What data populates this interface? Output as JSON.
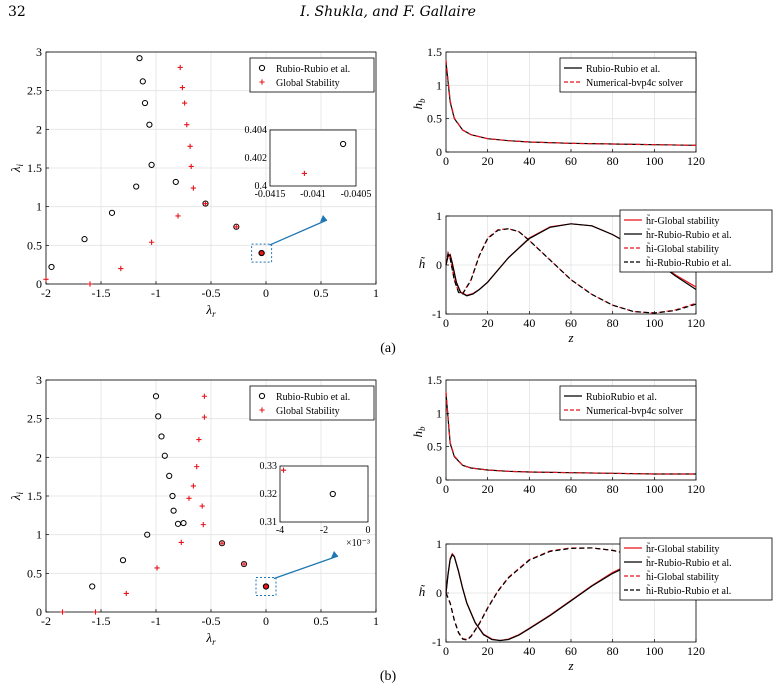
{
  "page": {
    "number": "32",
    "running_title": "I. Shukla, and F. Gallaire"
  },
  "panels": [
    {
      "caption": "(a)",
      "spectrum": {
        "xlabel": "λ",
        "xlabel_sub": "r",
        "ylabel": "λ",
        "ylabel_sub": "i",
        "xticks": [
          "-2",
          "-1.5",
          "-1",
          "-0.5",
          "0",
          "0.5",
          "1"
        ],
        "yticks": [
          "0",
          "0.5",
          "1",
          "1.5",
          "2",
          "2.5",
          "3"
        ],
        "legend": [
          "Rubio-Rubio et al.",
          "Global Stability"
        ],
        "inset_xticks": [
          "-0.0415",
          "-0.041",
          "-0.0405"
        ],
        "inset_yticks": [
          "0.4",
          "0.402",
          "0.404"
        ],
        "inset_xexp": ""
      },
      "base": {
        "ylabel": "h",
        "ylabel_sub": "b",
        "xticks": [
          "0",
          "20",
          "40",
          "60",
          "80",
          "100",
          "120"
        ],
        "yticks": [
          "0",
          "0.5",
          "1",
          "1.5"
        ],
        "legend": [
          "Rubio-Rubio et al.",
          "Numerical-bvp4c solver"
        ]
      },
      "pert": {
        "ylabel": "h̃",
        "xlabel": "z",
        "xticks": [
          "0",
          "20",
          "40",
          "60",
          "80",
          "100",
          "120"
        ],
        "yticks": [
          "-1",
          "0",
          "1"
        ],
        "legend": [
          "h̃r-Global stability",
          "h̃r-Rubio-Rubio et al.",
          "h̃i-Global stability",
          "h̃i-Rubio-Rubio et al."
        ]
      }
    },
    {
      "caption": "(b)",
      "spectrum": {
        "xlabel": "λ",
        "xlabel_sub": "r",
        "ylabel": "λ",
        "ylabel_sub": "i",
        "xticks": [
          "-2",
          "-1.5",
          "-1",
          "-0.5",
          "0",
          "0.5",
          "1"
        ],
        "yticks": [
          "0",
          "0.5",
          "1",
          "1.5",
          "2",
          "2.5",
          "3"
        ],
        "legend": [
          "Rubio-Rubio et al.",
          "Global Stability"
        ],
        "inset_xticks": [
          "-4",
          "-2",
          "0"
        ],
        "inset_yticks": [
          "0.31",
          "0.32",
          "0.33"
        ],
        "inset_xexp": "×10⁻³"
      },
      "base": {
        "ylabel": "h",
        "ylabel_sub": "b",
        "xticks": [
          "0",
          "20",
          "40",
          "60",
          "80",
          "100",
          "120"
        ],
        "yticks": [
          "0",
          "0.5",
          "1",
          "1.5"
        ],
        "legend": [
          "RubioRubio et al.",
          "Numerical-bvp4c solver"
        ]
      },
      "pert": {
        "ylabel": "h̃",
        "xlabel": "z",
        "xticks": [
          "0",
          "20",
          "40",
          "60",
          "80",
          "100",
          "120"
        ],
        "yticks": [
          "-1",
          "0",
          "1"
        ],
        "legend": [
          "h̃r-Global stability",
          "h̃r-Rubio-Rubio et al.",
          "h̃i-Global stability",
          "h̃i-Rubio-Rubio et al."
        ]
      }
    }
  ],
  "colors": {
    "rubio": "#000000",
    "global": "#e8141b",
    "arrow": "#1f77b4"
  },
  "chart_data": [
    {
      "panel": "a",
      "type": "scatter",
      "xlim": [
        -2,
        1
      ],
      "ylim": [
        0,
        3
      ],
      "series": [
        {
          "name": "Rubio-Rubio et al.",
          "marker": "circle",
          "x": [
            -1.95,
            -1.65,
            -1.4,
            -1.18,
            -1.15,
            -1.12,
            -1.1,
            -1.06,
            -1.04,
            -0.82,
            -0.55,
            -0.27,
            -0.04
          ],
          "y": [
            0.22,
            0.58,
            0.92,
            1.26,
            2.92,
            2.62,
            2.34,
            2.06,
            1.54,
            1.32,
            1.04,
            0.74,
            0.4
          ]
        },
        {
          "name": "Global Stability",
          "marker": "plus",
          "x": [
            -2.0,
            -1.6,
            -1.32,
            -1.04,
            -0.8,
            -0.66,
            -0.68,
            -0.69,
            -0.72,
            -0.74,
            -0.76,
            -0.78,
            -0.55,
            -0.27,
            -0.04
          ],
          "y": [
            0.06,
            0.0,
            0.2,
            0.54,
            0.88,
            1.24,
            1.52,
            1.78,
            2.06,
            2.34,
            2.54,
            2.8,
            1.04,
            0.74,
            0.4
          ]
        }
      ],
      "inset": {
        "xlim": [
          -0.0415,
          -0.0405
        ],
        "ylim": [
          0.4,
          0.404
        ],
        "points": [
          {
            "series": "Rubio-Rubio et al.",
            "x": -0.04065,
            "y": 0.403
          },
          {
            "series": "Global Stability",
            "x": -0.0411,
            "y": 0.4009
          }
        ]
      }
    },
    {
      "panel": "a",
      "type": "line",
      "xlim": [
        0,
        120
      ],
      "ylim": [
        0,
        1.5
      ],
      "ylabel": "h_b",
      "series": [
        {
          "name": "Rubio-Rubio et al.",
          "x": [
            0,
            2,
            4,
            8,
            12,
            20,
            30,
            40,
            60,
            80,
            100,
            120
          ],
          "y": [
            1.35,
            0.75,
            0.5,
            0.33,
            0.26,
            0.2,
            0.17,
            0.15,
            0.13,
            0.12,
            0.11,
            0.1
          ]
        },
        {
          "name": "Numerical-bvp4c solver",
          "x": [
            0,
            2,
            4,
            8,
            12,
            20,
            30,
            40,
            60,
            80,
            100,
            120
          ],
          "y": [
            1.38,
            0.77,
            0.51,
            0.33,
            0.26,
            0.2,
            0.17,
            0.15,
            0.13,
            0.12,
            0.11,
            0.1
          ]
        }
      ]
    },
    {
      "panel": "a",
      "type": "line",
      "xlim": [
        0,
        120
      ],
      "ylim": [
        -1,
        1
      ],
      "xlabel": "z",
      "series": [
        {
          "name": "h̃r-Global stability",
          "x": [
            0,
            1,
            2,
            3,
            5,
            7,
            10,
            13,
            16,
            20,
            25,
            30,
            40,
            50,
            60,
            70,
            80,
            90,
            100,
            110,
            120
          ],
          "y": [
            0,
            0.2,
            0.22,
            0.05,
            -0.35,
            -0.55,
            -0.62,
            -0.58,
            -0.5,
            -0.35,
            -0.1,
            0.15,
            0.55,
            0.78,
            0.84,
            0.8,
            0.62,
            0.38,
            0.1,
            -0.2,
            -0.45
          ]
        },
        {
          "name": "h̃r-Rubio-Rubio et al.",
          "x": [
            0,
            1,
            2,
            3,
            5,
            7,
            10,
            13,
            16,
            20,
            25,
            30,
            40,
            50,
            60,
            70,
            80,
            90,
            100,
            110,
            120
          ],
          "y": [
            0,
            0.18,
            0.2,
            0.03,
            -0.36,
            -0.56,
            -0.63,
            -0.59,
            -0.5,
            -0.35,
            -0.1,
            0.15,
            0.54,
            0.77,
            0.84,
            0.8,
            0.62,
            0.38,
            0.1,
            -0.22,
            -0.5
          ]
        },
        {
          "name": "h̃i-Global stability",
          "x": [
            0,
            1,
            2,
            4,
            6,
            8,
            12,
            16,
            20,
            25,
            30,
            35,
            40,
            50,
            60,
            70,
            80,
            90,
            100,
            110,
            120
          ],
          "y": [
            0,
            0.25,
            0.15,
            -0.3,
            -0.55,
            -0.58,
            -0.3,
            0.2,
            0.55,
            0.72,
            0.74,
            0.68,
            0.5,
            0.1,
            -0.3,
            -0.6,
            -0.82,
            -0.95,
            -0.98,
            -0.92,
            -0.78
          ]
        },
        {
          "name": "h̃i-Rubio-Rubio et al.",
          "x": [
            0,
            1,
            2,
            4,
            6,
            8,
            12,
            16,
            20,
            25,
            30,
            35,
            40,
            50,
            60,
            70,
            80,
            90,
            100,
            110,
            120
          ],
          "y": [
            0,
            0.23,
            0.13,
            -0.31,
            -0.56,
            -0.59,
            -0.31,
            0.19,
            0.54,
            0.71,
            0.74,
            0.68,
            0.5,
            0.1,
            -0.3,
            -0.6,
            -0.82,
            -0.95,
            -0.98,
            -0.93,
            -0.8
          ]
        }
      ]
    },
    {
      "panel": "b",
      "type": "scatter",
      "xlim": [
        -2,
        1
      ],
      "ylim": [
        0,
        3
      ],
      "series": [
        {
          "name": "Rubio-Rubio et al.",
          "marker": "circle",
          "x": [
            -1.58,
            -1.3,
            -1.08,
            -1.0,
            -0.98,
            -0.95,
            -0.92,
            -0.88,
            -0.85,
            -0.84,
            -0.8,
            -0.75,
            -0.4,
            -0.2,
            0.0
          ],
          "y": [
            0.33,
            0.67,
            1.0,
            2.79,
            2.53,
            2.27,
            2.02,
            1.76,
            1.5,
            1.31,
            1.14,
            1.15,
            0.89,
            0.62,
            0.33
          ]
        },
        {
          "name": "Global Stability",
          "marker": "plus",
          "x": [
            -1.85,
            -1.55,
            -1.27,
            -0.99,
            -0.77,
            -0.7,
            -0.66,
            -0.63,
            -0.61,
            -0.58,
            -0.57,
            -0.56,
            -0.56,
            -0.4,
            -0.2,
            0.0
          ],
          "y": [
            0.0,
            0.0,
            0.24,
            0.57,
            0.9,
            1.47,
            1.63,
            1.88,
            2.23,
            1.37,
            1.13,
            2.52,
            2.79,
            0.89,
            0.62,
            0.33
          ]
        }
      ],
      "inset": {
        "xlim": [
          -0.005,
          0
        ],
        "ylim": [
          0.31,
          0.33
        ],
        "points": [
          {
            "series": "Rubio-Rubio et al.",
            "x": -0.002,
            "y": 0.32
          },
          {
            "series": "Global Stability",
            "x": -0.0048,
            "y": 0.3285
          }
        ]
      }
    },
    {
      "panel": "b",
      "type": "line",
      "xlim": [
        0,
        120
      ],
      "ylim": [
        0,
        1.5
      ],
      "ylabel": "h_b",
      "series": [
        {
          "name": "RubioRubio et al.",
          "x": [
            0,
            2,
            4,
            8,
            12,
            20,
            30,
            40,
            60,
            80,
            100,
            120
          ],
          "y": [
            1.3,
            0.55,
            0.35,
            0.22,
            0.18,
            0.15,
            0.13,
            0.12,
            0.11,
            0.1,
            0.09,
            0.09
          ]
        },
        {
          "name": "Numerical-bvp4c solver",
          "x": [
            0,
            2,
            4,
            8,
            12,
            20,
            30,
            40,
            60,
            80,
            100,
            120
          ],
          "y": [
            1.32,
            0.56,
            0.36,
            0.22,
            0.18,
            0.15,
            0.13,
            0.12,
            0.11,
            0.1,
            0.09,
            0.09
          ]
        }
      ]
    },
    {
      "panel": "b",
      "type": "line",
      "xlim": [
        0,
        120
      ],
      "ylim": [
        -1,
        1
      ],
      "xlabel": "z",
      "series": [
        {
          "name": "h̃r-Global stability",
          "x": [
            0,
            1,
            2,
            3,
            4,
            6,
            8,
            10,
            14,
            18,
            22,
            26,
            30,
            35,
            40,
            50,
            60,
            70,
            80,
            90,
            100,
            110,
            120
          ],
          "y": [
            0,
            0.4,
            0.7,
            0.8,
            0.75,
            0.45,
            0.1,
            -0.2,
            -0.6,
            -0.84,
            -0.94,
            -0.97,
            -0.94,
            -0.85,
            -0.72,
            -0.45,
            -0.15,
            0.15,
            0.42,
            0.62,
            0.76,
            0.84,
            0.88
          ]
        },
        {
          "name": "h̃r-Rubio-Rubio et al.",
          "x": [
            0,
            1,
            2,
            3,
            4,
            6,
            8,
            10,
            14,
            18,
            22,
            26,
            30,
            35,
            40,
            50,
            60,
            70,
            80,
            90,
            100,
            110,
            120
          ],
          "y": [
            0,
            0.38,
            0.68,
            0.78,
            0.74,
            0.44,
            0.09,
            -0.21,
            -0.61,
            -0.85,
            -0.95,
            -0.97,
            -0.95,
            -0.86,
            -0.73,
            -0.46,
            -0.16,
            0.14,
            0.4,
            0.6,
            0.74,
            0.8,
            0.84
          ]
        },
        {
          "name": "h̃i-Global stability",
          "x": [
            0,
            2,
            4,
            6,
            8,
            10,
            12,
            16,
            20,
            25,
            30,
            40,
            50,
            60,
            70,
            80,
            90,
            100,
            110,
            120
          ],
          "y": [
            0,
            -0.2,
            -0.55,
            -0.8,
            -0.93,
            -0.95,
            -0.88,
            -0.62,
            -0.3,
            0.05,
            0.32,
            0.68,
            0.86,
            0.92,
            0.92,
            0.87,
            0.77,
            0.63,
            0.47,
            0.28
          ]
        },
        {
          "name": "h̃i-Rubio-Rubio et al.",
          "x": [
            0,
            2,
            4,
            6,
            8,
            10,
            12,
            16,
            20,
            25,
            30,
            40,
            50,
            60,
            70,
            80,
            90,
            100,
            110,
            120
          ],
          "y": [
            0,
            -0.21,
            -0.56,
            -0.81,
            -0.94,
            -0.96,
            -0.89,
            -0.63,
            -0.31,
            0.04,
            0.31,
            0.67,
            0.85,
            0.91,
            0.92,
            0.87,
            0.77,
            0.63,
            0.47,
            0.28
          ]
        }
      ]
    }
  ]
}
